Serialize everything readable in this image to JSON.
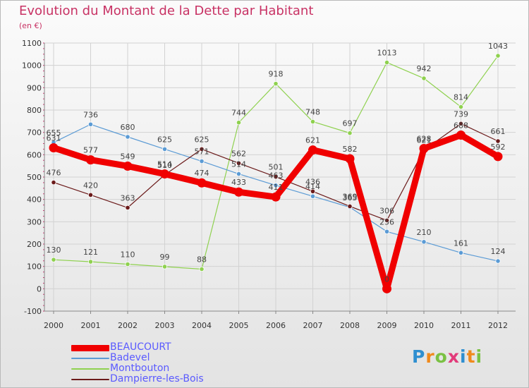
{
  "title": "Evolution du Montant de la Dette par Habitant",
  "unit": "(en €)",
  "brand": {
    "letters": [
      "P",
      "r",
      "o",
      "x",
      "i",
      "t",
      "i"
    ],
    "colors": [
      "#2f8fd0",
      "#f08a1c",
      "#7ac143",
      "#e23b7a",
      "#2f8fd0",
      "#f08a1c",
      "#7ac143"
    ]
  },
  "chart_data": {
    "type": "line",
    "x": [
      "2000",
      "2001",
      "2002",
      "2003",
      "2004",
      "2005",
      "2006",
      "2007",
      "2008",
      "2009",
      "2010",
      "2011",
      "2012"
    ],
    "ylim": [
      -100,
      1100
    ],
    "yticks": [
      -100,
      0,
      100,
      200,
      300,
      400,
      500,
      600,
      700,
      800,
      900,
      1000,
      1100
    ],
    "grid": true,
    "legend_position": "bottom-left",
    "series": [
      {
        "name": "BEAUCOURT",
        "color": "#f00000",
        "values": [
          631,
          577,
          549,
          514,
          474,
          433,
          411,
          621,
          582,
          0,
          628,
          688,
          592
        ]
      },
      {
        "name": "Badevel",
        "color": "#5b9bd5",
        "values": [
          655,
          736,
          680,
          625,
          571,
          514,
          463,
          414,
          365,
          256,
          210,
          161,
          124
        ]
      },
      {
        "name": "Montbouton",
        "color": "#8fd14f",
        "values": [
          130,
          121,
          110,
          99,
          88,
          744,
          918,
          748,
          697,
          1013,
          942,
          814,
          1043
        ]
      },
      {
        "name": "Dampierre-les-Bois",
        "color": "#6b1a1a",
        "values": [
          476,
          420,
          363,
          510,
          625,
          562,
          501,
          436,
          369,
          306,
          621,
          739,
          661
        ]
      }
    ]
  }
}
